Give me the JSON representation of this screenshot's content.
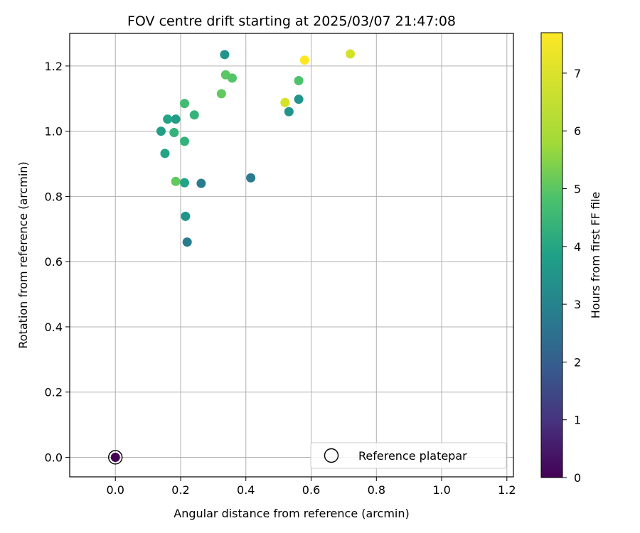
{
  "chart_data": {
    "type": "scatter",
    "title": "FOV centre drift starting at 2025/03/07 21:47:08",
    "xlabel": "Angular distance from reference (arcmin)",
    "ylabel": "Rotation from reference (arcmin)",
    "xlim": [
      -0.14,
      1.22
    ],
    "ylim": [
      -0.06,
      1.3
    ],
    "x_ticks": [
      "0.0",
      "0.2",
      "0.4",
      "0.6",
      "0.8",
      "1.0",
      "1.2"
    ],
    "y_ticks": [
      "0.0",
      "0.2",
      "0.4",
      "0.6",
      "0.8",
      "1.0",
      "1.2"
    ],
    "grid": true,
    "colormap": "viridis",
    "colorbar": {
      "label": "Hours from first FF file",
      "range": [
        0,
        7.7
      ],
      "ticks": [
        "0",
        "1",
        "2",
        "3",
        "4",
        "5",
        "6",
        "7"
      ]
    },
    "legend": {
      "entries": [
        "Reference platepar"
      ],
      "position": "lower-right"
    },
    "reference_point": {
      "x": 0.0,
      "y": 0.0,
      "hours": 0.0
    },
    "points": [
      {
        "x": 0.335,
        "y": 1.235,
        "hours": 4.0
      },
      {
        "x": 0.58,
        "y": 1.218,
        "hours": 7.7
      },
      {
        "x": 0.72,
        "y": 1.237,
        "hours": 7.2
      },
      {
        "x": 0.338,
        "y": 1.173,
        "hours": 5.7
      },
      {
        "x": 0.358,
        "y": 1.163,
        "hours": 5.6
      },
      {
        "x": 0.325,
        "y": 1.115,
        "hours": 5.8
      },
      {
        "x": 0.562,
        "y": 1.155,
        "hours": 5.5
      },
      {
        "x": 0.562,
        "y": 1.098,
        "hours": 4.0
      },
      {
        "x": 0.52,
        "y": 1.088,
        "hours": 7.2
      },
      {
        "x": 0.532,
        "y": 1.06,
        "hours": 4.0
      },
      {
        "x": 0.212,
        "y": 1.085,
        "hours": 5.3
      },
      {
        "x": 0.242,
        "y": 1.05,
        "hours": 5.0
      },
      {
        "x": 0.16,
        "y": 1.037,
        "hours": 4.5
      },
      {
        "x": 0.185,
        "y": 1.037,
        "hours": 4.3
      },
      {
        "x": 0.14,
        "y": 1.0,
        "hours": 4.3
      },
      {
        "x": 0.18,
        "y": 0.996,
        "hours": 5.0
      },
      {
        "x": 0.212,
        "y": 0.969,
        "hours": 5.0
      },
      {
        "x": 0.152,
        "y": 0.932,
        "hours": 4.5
      },
      {
        "x": 0.185,
        "y": 0.846,
        "hours": 5.8
      },
      {
        "x": 0.212,
        "y": 0.842,
        "hours": 4.5
      },
      {
        "x": 0.263,
        "y": 0.84,
        "hours": 3.2
      },
      {
        "x": 0.415,
        "y": 0.857,
        "hours": 3.2
      },
      {
        "x": 0.215,
        "y": 0.739,
        "hours": 4.0
      },
      {
        "x": 0.22,
        "y": 0.66,
        "hours": 3.2
      }
    ]
  }
}
